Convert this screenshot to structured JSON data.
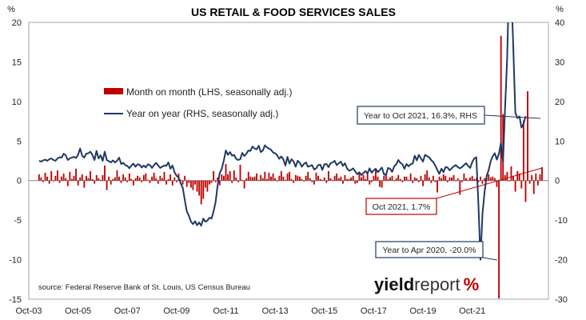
{
  "chart_data": {
    "type": "bar",
    "title": "US RETAIL & FOOD SERVICES SALES",
    "left_axis": {
      "unit": "%",
      "ylim": [
        -15,
        20
      ],
      "ticks": [
        -15,
        -10,
        -5,
        0,
        5,
        10,
        15,
        20
      ]
    },
    "right_axis": {
      "unit": "%",
      "ylim": [
        -30,
        40
      ],
      "ticks": [
        -30,
        -20,
        -10,
        0,
        10,
        20,
        30,
        40
      ]
    },
    "x_ticks": [
      "Oct-03",
      "Oct-05",
      "Oct-07",
      "Oct-09",
      "Oct-11",
      "Oct-13",
      "Oct-15",
      "Oct-17",
      "Oct-19",
      "Oct-21"
    ],
    "x_start": "2003-10",
    "grid": false,
    "legend_position": "upper-left",
    "series": [
      {
        "name": "Month on month (LHS, seasonally adj.)",
        "type": "bar",
        "axis": "left",
        "color": "#c00000",
        "values": [
          0.8,
          0.4,
          -0.2,
          1.0,
          0.5,
          -0.4,
          1.2,
          -0.1,
          0.6,
          1.3,
          -0.3,
          0.5,
          0.9,
          0.3,
          -0.7,
          1.1,
          0.2,
          0.6,
          1.5,
          -0.6,
          0.4,
          0.8,
          -0.9,
          0.6,
          0.3,
          1.2,
          0.2,
          -0.4,
          0.7,
          0.3,
          0.1,
          0.7,
          1.9,
          -1.2,
          0.5,
          -0.5,
          0.2,
          0.4,
          1.3,
          0.5,
          -0.3,
          0.8,
          0.4,
          -0.2,
          0.9,
          0.2,
          -0.6,
          0.3,
          0.6,
          0.4,
          -0.2,
          0.7,
          0.9,
          0.1,
          -0.3,
          0.5,
          1.0,
          0.3,
          -0.4,
          0.6,
          0.3,
          1.1,
          -0.5,
          0.2,
          0.8,
          -0.6,
          0.4,
          -0.2,
          0.9,
          0.1,
          -0.5,
          0.6,
          -0.8,
          -0.3,
          -0.9,
          -1.2,
          -0.5,
          -1.4,
          -1.9,
          -3.0,
          -2.3,
          -0.9,
          -1.4,
          -0.5,
          -0.3,
          1.2,
          -0.2,
          0.4,
          -0.6,
          0.8,
          0.6,
          2.1,
          0.8,
          1.2,
          -0.3,
          1.3,
          0.4,
          -0.2,
          2.0,
          0.1,
          -1.0,
          0.3,
          1.1,
          0.5,
          0.4,
          0.5,
          0.9,
          0.1,
          0.7,
          0.3,
          1.1,
          0.2,
          1.0,
          0.5,
          0.9,
          0.3,
          -0.1,
          0.6,
          1.2,
          0.5,
          0.1,
          0.9,
          1.1,
          0.2,
          -0.3,
          0.7,
          0.6,
          0.5,
          0.2,
          -0.1,
          0.6,
          1.1,
          0.3,
          -0.2,
          -0.5,
          1.0,
          0.6,
          0.2,
          0.1,
          0.4,
          -0.3,
          1.2,
          0.3,
          0.1,
          0.6,
          0.9,
          0.3,
          0.5,
          -0.4,
          0.7,
          0.2,
          0.2,
          0.4,
          0.6,
          -0.4,
          -0.3,
          1.1,
          0.4,
          0.7,
          0.2,
          0.9,
          -0.5,
          -0.2,
          0.6,
          1.4,
          0.5,
          -0.8,
          -0.9,
          0.6,
          0.9,
          0.2,
          0.4,
          0.6,
          -0.1,
          0.3,
          0.7,
          0.2,
          -0.2,
          0.5,
          0.5,
          0.1,
          0.9,
          -0.3,
          0.4,
          0.3,
          -0.2,
          0.6,
          -0.7,
          0.8,
          1.3,
          0.4,
          -0.3,
          0.6,
          -0.2,
          -1.5,
          0.5,
          0.3,
          0.8,
          0.6,
          -0.2,
          0.4,
          0.4,
          0.7,
          -0.1,
          0.3,
          -1.8,
          -0.2,
          0.9,
          0.3,
          0.1,
          0.4,
          0.6,
          0.2,
          0.3,
          -0.2,
          0.5,
          -0.4,
          0.3,
          0.6,
          0.8,
          0.4,
          0.5,
          0.3,
          -0.8,
          -14.9,
          18.3,
          8.4,
          0.7,
          1.1,
          -0.1,
          1.8,
          0.6,
          -1.4,
          1.2,
          0.9,
          -1.0,
          7.6,
          -2.7,
          11.3,
          -0.4,
          0.7,
          -1.7,
          0.9,
          -0.6,
          0.8,
          1.7
        ]
      },
      {
        "name": "Year on year (RHS, seasonally adj.)",
        "type": "line",
        "axis": "right",
        "color": "#1f3864",
        "values": [
          5.0,
          4.8,
          5.1,
          5.3,
          5.0,
          5.4,
          5.6,
          5.2,
          5.0,
          5.6,
          5.9,
          5.8,
          6.8,
          6.4,
          5.2,
          5.6,
          5.8,
          6.0,
          5.7,
          6.5,
          8.1,
          6.3,
          5.8,
          6.8,
          6.9,
          7.3,
          6.5,
          5.2,
          7.5,
          5.6,
          6.4,
          5.0,
          7.3,
          5.2,
          4.9,
          4.6,
          5.1,
          4.6,
          5.0,
          5.8,
          4.2,
          4.5,
          3.9,
          3.7,
          3.1,
          3.8,
          4.3,
          3.5,
          4.1,
          4.0,
          3.3,
          3.8,
          3.3,
          4.1,
          3.9,
          3.2,
          3.9,
          4.5,
          3.8,
          3.2,
          3.5,
          3.8,
          3.7,
          4.6,
          3.0,
          3.8,
          2.1,
          1.2,
          0.8,
          -0.7,
          -1.8,
          -5.0,
          -7.8,
          -8.9,
          -10.4,
          -11.0,
          -10.3,
          -11.3,
          -10.6,
          -11.4,
          -9.6,
          -10.4,
          -10.1,
          -9.4,
          -9.6,
          -7.8,
          -5.4,
          -1.1,
          1.9,
          3.0,
          5.1,
          7.6,
          6.5,
          7.2,
          6.3,
          6.5,
          5.5,
          5.2,
          5.4,
          7.0,
          6.2,
          6.8,
          7.6,
          7.5,
          8.6,
          8.1,
          7.9,
          8.8,
          7.2,
          7.6,
          8.9,
          8.4,
          8.1,
          7.8,
          7.1,
          6.9,
          6.4,
          5.5,
          6.1,
          5.4,
          3.8,
          6.0,
          4.3,
          5.4,
          4.8,
          3.5,
          5.0,
          4.5,
          3.5,
          4.2,
          4.6,
          3.5,
          3.7,
          3.9,
          2.8,
          3.1,
          3.9,
          4.0,
          2.7,
          4.1,
          4.2,
          3.4,
          4.4,
          4.6,
          5.0,
          3.9,
          4.4,
          4.8,
          3.7,
          4.4,
          3.1,
          2.5,
          2.7,
          3.1,
          2.3,
          1.6,
          2.1,
          1.4,
          1.9,
          2.4,
          1.8,
          3.1,
          2.0,
          2.6,
          3.0,
          2.1,
          2.7,
          3.3,
          1.6,
          1.4,
          3.2,
          3.0,
          2.2,
          3.6,
          4.1,
          5.2,
          4.5,
          4.1,
          3.0,
          4.2,
          3.6,
          4.1,
          4.3,
          6.3,
          5.1,
          6.5,
          5.6,
          4.8,
          6.5,
          6.2,
          5.9,
          5.2,
          4.7,
          3.8,
          2.7,
          1.7,
          3.0,
          2.1,
          3.4,
          3.3,
          2.6,
          3.1,
          3.6,
          3.9,
          3.4,
          3.1,
          3.4,
          3.9,
          4.4,
          3.7,
          3.2,
          4.7,
          5.6,
          5.9,
          -5.8,
          -20.0,
          -8.4,
          -3.0,
          1.2,
          2.6,
          4.9,
          6.2,
          6.9,
          5.3,
          6.8,
          9.5,
          4.8,
          18.5,
          30.5,
          51.0,
          48.9,
          33.9,
          17.2,
          15.8,
          16.2,
          13.4,
          14.4,
          16.3
        ]
      }
    ],
    "annotations": [
      {
        "id": "yoy-oct-2021",
        "text": "Year to Oct 2021, 16.3%, RHS"
      },
      {
        "id": "mom-oct-2021",
        "text": "Oct 2021, 1.7%"
      },
      {
        "id": "yoy-apr-2020",
        "text": "Year to Apr 2020, -20.0%"
      }
    ]
  },
  "source_text": "source: Federal Reserve Bank of St. Louis, US Census Bureau",
  "logo": {
    "part1": "yield",
    "part2": "report",
    "symbol": "%"
  }
}
